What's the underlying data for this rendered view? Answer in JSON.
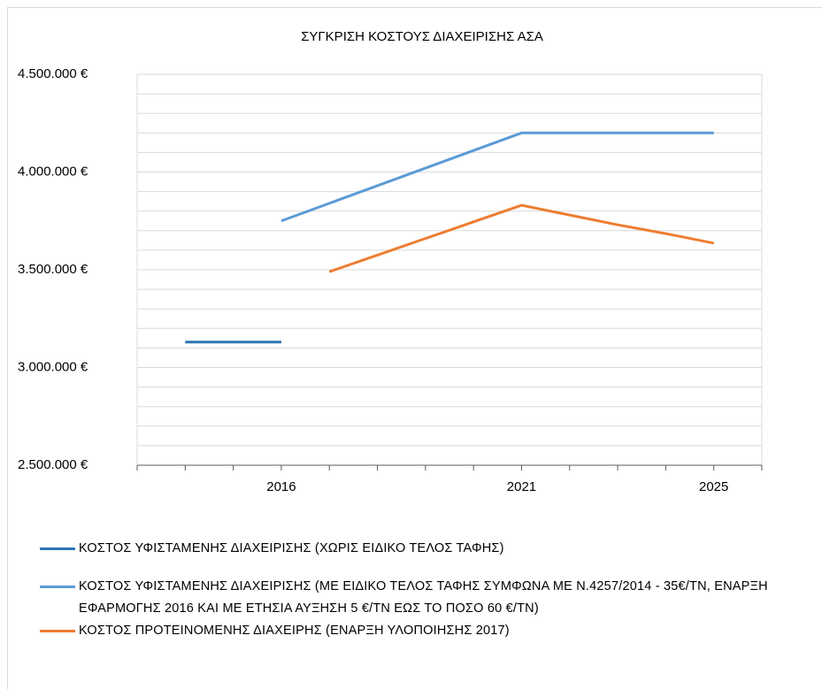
{
  "chart_data": {
    "type": "line",
    "title": "ΣΥΓΚΡΙΣΗ ΚΟΣΤΟΥΣ ΔΙΑΧΕΙΡΙΣΗΣ ΑΣΑ",
    "categories": [
      null,
      null,
      null,
      "2016",
      null,
      null,
      null,
      null,
      "2021",
      null,
      null,
      null,
      "2025",
      null
    ],
    "series": [
      {
        "name": "ΚΟΣΤΟΣ ΥΦΙΣΤΑΜΕΝΗΣ ΔΙΑΧΕΙΡΙΣΗΣ (ΧΩΡΙΣ ΕΙΔΙΚΟ ΤΕΛΟΣ ΤΑΦΗΣ)",
        "color": "#2e75b6",
        "values": [
          null,
          3130000,
          3130000,
          3130000,
          null,
          null,
          null,
          null,
          null,
          null,
          null,
          null,
          null,
          null
        ]
      },
      {
        "name": "ΚΟΣΤΟΣ ΥΦΙΣΤΑΜΕΝΗΣ ΔΙΑΧΕΙΡΙΣΗΣ (ΜΕ ΕΙΔΙΚΟ ΤΕΛΟΣ ΤΑΦΗΣ ΣΥΜΦΩΝΑ ΜΕ Ν.4257/2014 - 35€/ΤΝ, ΕΝΑΡΞΗ ΕΦΑΡΜΟΓΗΣ 2016 ΚΑΙ ΜΕ ΕΤΗΣΙΑ ΑΥΞΗΣΗ 5 €/ΤΝ ΕΩΣ ΤΟ ΠΟΣΟ 60 €/ΤΝ)",
        "color": "#5b9bd5",
        "values": [
          null,
          null,
          null,
          3750000,
          3840000,
          3930000,
          4020000,
          4110000,
          4200000,
          4200000,
          4200000,
          4200000,
          4200000,
          null
        ]
      },
      {
        "name": "ΚΟΣΤΟΣ ΠΡΟΤΕΙΝΟΜΕΝΗΣ ΔΙΑΧΕΙΡΗΣ (ΕΝΑΡΞΗ ΥΛΟΠΟΙΗΣΗΣ 2017)",
        "color": "#ed7d31",
        "values": [
          null,
          null,
          null,
          null,
          3490000,
          3575000,
          3660000,
          3745000,
          3830000,
          3780000,
          3730000,
          3685000,
          3636000,
          null
        ]
      }
    ],
    "ylim": [
      2500000,
      4500000
    ],
    "yticks": [
      {
        "value": 2500000,
        "label": "2.500.000 €"
      },
      {
        "value": 3000000,
        "label": "3.000.000 €"
      },
      {
        "value": 3500000,
        "label": "3.500.000 €"
      },
      {
        "value": 4000000,
        "label": "4.000.000 €"
      },
      {
        "value": 4500000,
        "label": "4.500.000 €"
      }
    ],
    "minor_yticks": [
      2600000,
      2700000,
      2800000,
      2900000,
      3100000,
      3200000,
      3300000,
      3400000,
      3600000,
      3700000,
      3800000,
      3900000,
      4100000,
      4200000,
      4300000,
      4400000
    ],
    "grid": true,
    "legend": "bottom"
  }
}
